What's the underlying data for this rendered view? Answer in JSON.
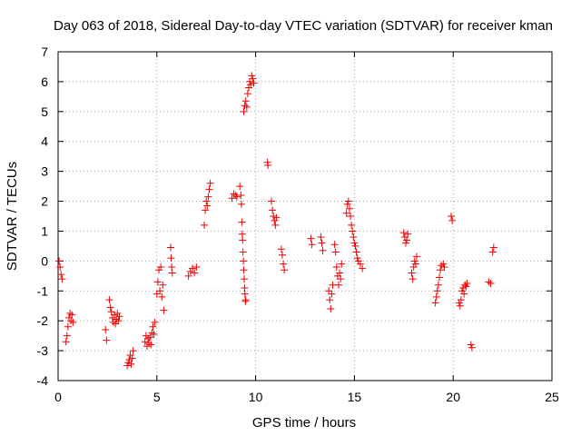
{
  "chart_data": {
    "type": "scatter",
    "title": "Day 063 of 2018, Sidereal Day-to-day VTEC variation (SDTVAR) for receiver kman",
    "xlabel": "GPS time / hours",
    "ylabel": "SDTVAR / TECUs",
    "xlim": [
      0,
      25
    ],
    "ylim": [
      -4,
      7
    ],
    "xticks": [
      "0",
      "5",
      "10",
      "15",
      "20",
      "25"
    ],
    "yticks": [
      "-4",
      "-3",
      "-2",
      "-1",
      "0",
      "1",
      "2",
      "3",
      "4",
      "5",
      "6",
      "7"
    ],
    "grid": true,
    "marker": "+",
    "color": "#ee0000",
    "series": [
      {
        "name": "SDTVAR",
        "points": [
          [
            0.05,
            0.0
          ],
          [
            0.1,
            -0.2
          ],
          [
            0.15,
            -0.45
          ],
          [
            0.2,
            -0.6
          ],
          [
            0.4,
            -2.7
          ],
          [
            0.45,
            -2.5
          ],
          [
            0.5,
            -2.2
          ],
          [
            0.55,
            -1.9
          ],
          [
            0.6,
            -1.75
          ],
          [
            0.65,
            -2.0
          ],
          [
            0.7,
            -1.8
          ],
          [
            0.75,
            -2.05
          ],
          [
            2.4,
            -2.3
          ],
          [
            2.45,
            -2.65
          ],
          [
            2.6,
            -1.3
          ],
          [
            2.65,
            -1.55
          ],
          [
            2.7,
            -1.7
          ],
          [
            2.75,
            -1.9
          ],
          [
            2.8,
            -2.05
          ],
          [
            2.85,
            -1.8
          ],
          [
            2.9,
            -2.1
          ],
          [
            2.95,
            -1.95
          ],
          [
            3.0,
            -1.75
          ],
          [
            3.05,
            -2.0
          ],
          [
            3.1,
            -1.85
          ],
          [
            3.5,
            -3.5
          ],
          [
            3.55,
            -3.4
          ],
          [
            3.6,
            -3.3
          ],
          [
            3.65,
            -3.15
          ],
          [
            3.7,
            -3.45
          ],
          [
            3.75,
            -3.25
          ],
          [
            3.8,
            -3.0
          ],
          [
            4.4,
            -2.7
          ],
          [
            4.45,
            -2.5
          ],
          [
            4.5,
            -2.85
          ],
          [
            4.55,
            -2.6
          ],
          [
            4.6,
            -2.75
          ],
          [
            4.65,
            -2.55
          ],
          [
            4.7,
            -2.8
          ],
          [
            4.75,
            -2.4
          ],
          [
            4.8,
            -2.2
          ],
          [
            4.85,
            -2.45
          ],
          [
            4.9,
            -2.05
          ],
          [
            5.0,
            -1.1
          ],
          [
            5.05,
            -0.7
          ],
          [
            5.1,
            -0.3
          ],
          [
            5.15,
            -1.0
          ],
          [
            5.2,
            -0.2
          ],
          [
            5.25,
            -1.2
          ],
          [
            5.3,
            -0.8
          ],
          [
            5.35,
            -1.65
          ],
          [
            5.7,
            0.45
          ],
          [
            5.72,
            0.1
          ],
          [
            5.75,
            -0.2
          ],
          [
            5.78,
            -0.4
          ],
          [
            6.6,
            -0.5
          ],
          [
            6.7,
            -0.35
          ],
          [
            6.8,
            -0.25
          ],
          [
            6.9,
            -0.4
          ],
          [
            7.0,
            -0.2
          ],
          [
            7.4,
            1.2
          ],
          [
            7.45,
            1.7
          ],
          [
            7.5,
            2.0
          ],
          [
            7.55,
            1.85
          ],
          [
            7.6,
            2.15
          ],
          [
            7.65,
            2.4
          ],
          [
            7.7,
            2.6
          ],
          [
            8.8,
            2.1
          ],
          [
            8.9,
            2.25
          ],
          [
            9.0,
            2.2
          ],
          [
            9.05,
            2.15
          ],
          [
            9.2,
            2.5
          ],
          [
            9.25,
            2.2
          ],
          [
            9.28,
            1.9
          ],
          [
            9.3,
            1.3
          ],
          [
            9.32,
            0.9
          ],
          [
            9.34,
            0.7
          ],
          [
            9.36,
            0.3
          ],
          [
            9.38,
            0.0
          ],
          [
            9.4,
            -0.3
          ],
          [
            9.42,
            -0.6
          ],
          [
            9.44,
            -0.9
          ],
          [
            9.46,
            -1.1
          ],
          [
            9.48,
            -1.35
          ],
          [
            9.5,
            -1.3
          ],
          [
            9.4,
            5.0
          ],
          [
            9.45,
            5.2
          ],
          [
            9.5,
            5.35
          ],
          [
            9.55,
            5.15
          ],
          [
            9.6,
            5.6
          ],
          [
            9.65,
            5.8
          ],
          [
            9.7,
            6.0
          ],
          [
            9.75,
            5.9
          ],
          [
            9.8,
            6.2
          ],
          [
            9.85,
            6.1
          ],
          [
            9.9,
            5.95
          ],
          [
            10.6,
            3.3
          ],
          [
            10.62,
            3.2
          ],
          [
            10.8,
            2.0
          ],
          [
            10.85,
            1.7
          ],
          [
            10.9,
            1.5
          ],
          [
            10.95,
            1.35
          ],
          [
            11.0,
            1.2
          ],
          [
            11.05,
            1.45
          ],
          [
            11.3,
            0.4
          ],
          [
            11.35,
            0.2
          ],
          [
            11.4,
            -0.1
          ],
          [
            11.45,
            -0.3
          ],
          [
            12.8,
            0.75
          ],
          [
            12.85,
            0.55
          ],
          [
            13.3,
            0.8
          ],
          [
            13.35,
            0.6
          ],
          [
            13.4,
            0.35
          ],
          [
            13.7,
            -1.0
          ],
          [
            13.75,
            -1.3
          ],
          [
            13.8,
            -1.6
          ],
          [
            13.85,
            -1.1
          ],
          [
            13.9,
            -0.8
          ],
          [
            14.0,
            0.55
          ],
          [
            14.05,
            0.3
          ],
          [
            14.1,
            -0.2
          ],
          [
            14.15,
            -0.5
          ],
          [
            14.2,
            -0.8
          ],
          [
            14.25,
            -0.4
          ],
          [
            14.3,
            -0.6
          ],
          [
            14.35,
            -0.1
          ],
          [
            14.6,
            1.6
          ],
          [
            14.65,
            1.9
          ],
          [
            14.7,
            2.0
          ],
          [
            14.75,
            1.75
          ],
          [
            14.8,
            1.5
          ],
          [
            14.85,
            1.2
          ],
          [
            14.9,
            1.0
          ],
          [
            14.95,
            0.8
          ],
          [
            15.0,
            0.6
          ],
          [
            15.05,
            0.5
          ],
          [
            15.1,
            0.3
          ],
          [
            15.15,
            0.1
          ],
          [
            15.2,
            0.0
          ],
          [
            15.3,
            -0.1
          ],
          [
            15.4,
            -0.25
          ],
          [
            17.5,
            0.95
          ],
          [
            17.55,
            0.8
          ],
          [
            17.6,
            0.6
          ],
          [
            17.65,
            0.7
          ],
          [
            17.7,
            0.9
          ],
          [
            17.9,
            -0.4
          ],
          [
            17.95,
            -0.6
          ],
          [
            18.0,
            -0.2
          ],
          [
            18.05,
            0.0
          ],
          [
            18.1,
            -0.1
          ],
          [
            18.15,
            0.15
          ],
          [
            19.1,
            -1.4
          ],
          [
            19.15,
            -1.2
          ],
          [
            19.2,
            -1.0
          ],
          [
            19.25,
            -0.8
          ],
          [
            19.3,
            -0.55
          ],
          [
            19.35,
            -0.3
          ],
          [
            19.4,
            -0.15
          ],
          [
            19.5,
            -0.1
          ],
          [
            19.55,
            -0.2
          ],
          [
            19.9,
            1.5
          ],
          [
            19.95,
            1.35
          ],
          [
            20.3,
            -1.4
          ],
          [
            20.35,
            -1.5
          ],
          [
            20.4,
            -1.3
          ],
          [
            20.45,
            -1.0
          ],
          [
            20.5,
            -0.9
          ],
          [
            20.55,
            -1.1
          ],
          [
            20.6,
            -0.8
          ],
          [
            20.65,
            -0.85
          ],
          [
            20.7,
            -0.75
          ],
          [
            20.9,
            -2.8
          ],
          [
            20.95,
            -2.9
          ],
          [
            21.8,
            -0.7
          ],
          [
            21.9,
            -0.75
          ],
          [
            22.0,
            0.3
          ],
          [
            22.05,
            0.45
          ]
        ]
      }
    ]
  }
}
